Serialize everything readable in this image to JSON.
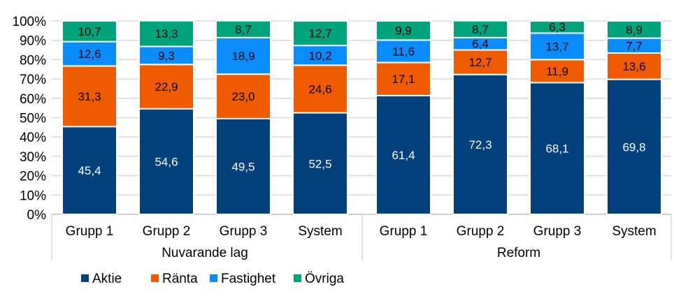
{
  "chart_data": {
    "type": "bar",
    "stacked": true,
    "percent_stacked": true,
    "groups": [
      {
        "name": "Nuvarande lag",
        "categories": [
          "Grupp 1",
          "Grupp 2",
          "Grupp 3",
          "System"
        ]
      },
      {
        "name": "Reform",
        "categories": [
          "Grupp 1",
          "Grupp 2",
          "Grupp 3",
          "System"
        ]
      }
    ],
    "series": [
      {
        "name": "Aktie",
        "color": "#03407c",
        "label_color": "#ffffff",
        "values": [
          45.4,
          54.6,
          49.5,
          52.5,
          61.4,
          72.3,
          68.1,
          69.8
        ],
        "labels": [
          "45,4",
          "54,6",
          "49,5",
          "52,5",
          "61,4",
          "72,3",
          "68,1",
          "69,8"
        ]
      },
      {
        "name": "Ränta",
        "color": "#f05a00",
        "label_color": "#000000",
        "values": [
          31.3,
          22.9,
          23.0,
          24.6,
          17.1,
          12.7,
          11.9,
          13.6
        ],
        "labels": [
          "31,3",
          "22,9",
          "23,0",
          "24,6",
          "17,1",
          "12,7",
          "11,9",
          "13,6"
        ]
      },
      {
        "name": "Fastighet",
        "color": "#0a8cff",
        "label_color": "#000000",
        "values": [
          12.6,
          9.3,
          18.9,
          10.2,
          11.6,
          6.4,
          13.7,
          7.7
        ],
        "labels": [
          "12,6",
          "9,3",
          "18,9",
          "10,2",
          "11,6",
          "6,4",
          "13,7",
          "7,7"
        ]
      },
      {
        "name": "Övriga",
        "color": "#00a47c",
        "label_color": "#000000",
        "values": [
          10.7,
          13.3,
          8.7,
          12.7,
          9.9,
          8.7,
          6.3,
          8.9
        ],
        "labels": [
          "10,7",
          "13,3",
          "8,7",
          "12,7",
          "9,9",
          "8,7",
          "6,3",
          "8,9"
        ]
      }
    ],
    "y_ticks": [
      "0%",
      "10%",
      "20%",
      "30%",
      "40%",
      "50%",
      "60%",
      "70%",
      "80%",
      "90%",
      "100%"
    ],
    "ylim": [
      0,
      100
    ],
    "grid": true,
    "legend": "bottom-left"
  }
}
